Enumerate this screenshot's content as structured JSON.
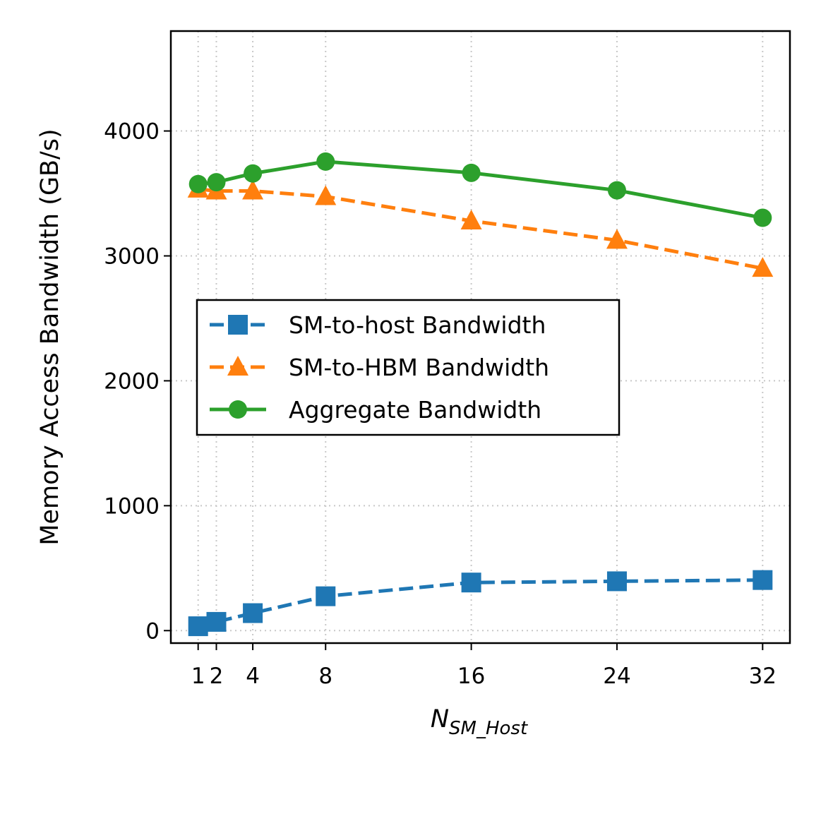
{
  "chart_data": {
    "type": "line",
    "x": [
      1,
      2,
      4,
      8,
      16,
      24,
      32
    ],
    "xticks": [
      "1",
      "2",
      "4",
      "8",
      "16",
      "24",
      "32"
    ],
    "xlim": [
      -0.5,
      33.5
    ],
    "ylim": [
      -100,
      4800
    ],
    "yticks": [
      0,
      1000,
      2000,
      3000,
      4000
    ],
    "ylabel": "Memory Access Bandwidth (GB/s)",
    "xlabel": {
      "main": "N",
      "sub": "SM_Host"
    },
    "grid": true,
    "legend_position": "center-left",
    "series": [
      {
        "name": "SM-to-host Bandwidth",
        "color": "#1f77b4",
        "marker": "square",
        "dashed": true,
        "values": [
          35,
          70,
          140,
          275,
          385,
          395,
          405
        ]
      },
      {
        "name": "SM-to-HBM Bandwidth",
        "color": "#ff7f0e",
        "marker": "triangle",
        "dashed": true,
        "values": [
          3535,
          3520,
          3520,
          3475,
          3280,
          3125,
          2900
        ]
      },
      {
        "name": "Aggregate Bandwidth",
        "color": "#2ca02c",
        "marker": "circle",
        "dashed": false,
        "values": [
          3575,
          3590,
          3660,
          3755,
          3665,
          3525,
          3305
        ]
      }
    ]
  }
}
